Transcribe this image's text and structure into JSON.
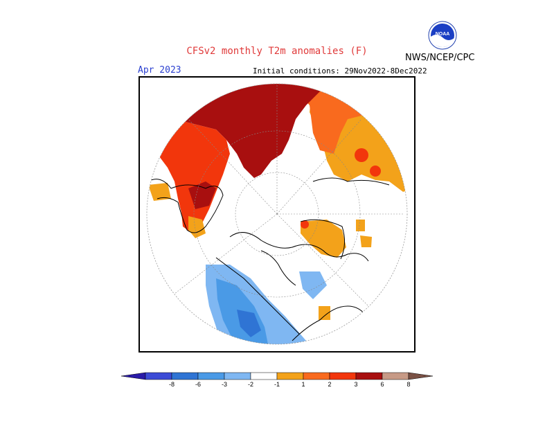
{
  "header": {
    "title": "CFSv2 monthly T2m anomalies (F)",
    "month": "Apr 2023",
    "initial_conditions": "Initial conditions: 29Nov2022-8Dec2022",
    "org": "NWS/NCEP/CPC",
    "logo_text": "NOAA"
  },
  "legend": {
    "bins": [
      {
        "color": "#2a1ba8"
      },
      {
        "color": "#3c4bd6"
      },
      {
        "color": "#2f74d4"
      },
      {
        "color": "#4a9ae6"
      },
      {
        "color": "#7fb7f2"
      },
      {
        "color": "#ffffff"
      },
      {
        "color": "#f3a21a"
      },
      {
        "color": "#f96a1e"
      },
      {
        "color": "#f2360c"
      },
      {
        "color": "#a80f0f"
      },
      {
        "color": "#c79a86"
      },
      {
        "color": "#7a5145"
      }
    ],
    "labels": [
      "-8",
      "-6",
      "-3",
      "-2",
      "-1",
      "1",
      "2",
      "3",
      "6",
      "8"
    ]
  },
  "map": {
    "projection": "north polar stereographic",
    "colors": {
      "deep_red": "#a80f0f",
      "red": "#f2360c",
      "orange_red": "#f96a1e",
      "orange": "#f3a21a",
      "light_blue": "#7fb7f2",
      "mid_blue": "#4a9ae6",
      "dark_blue": "#2f74d4"
    }
  }
}
